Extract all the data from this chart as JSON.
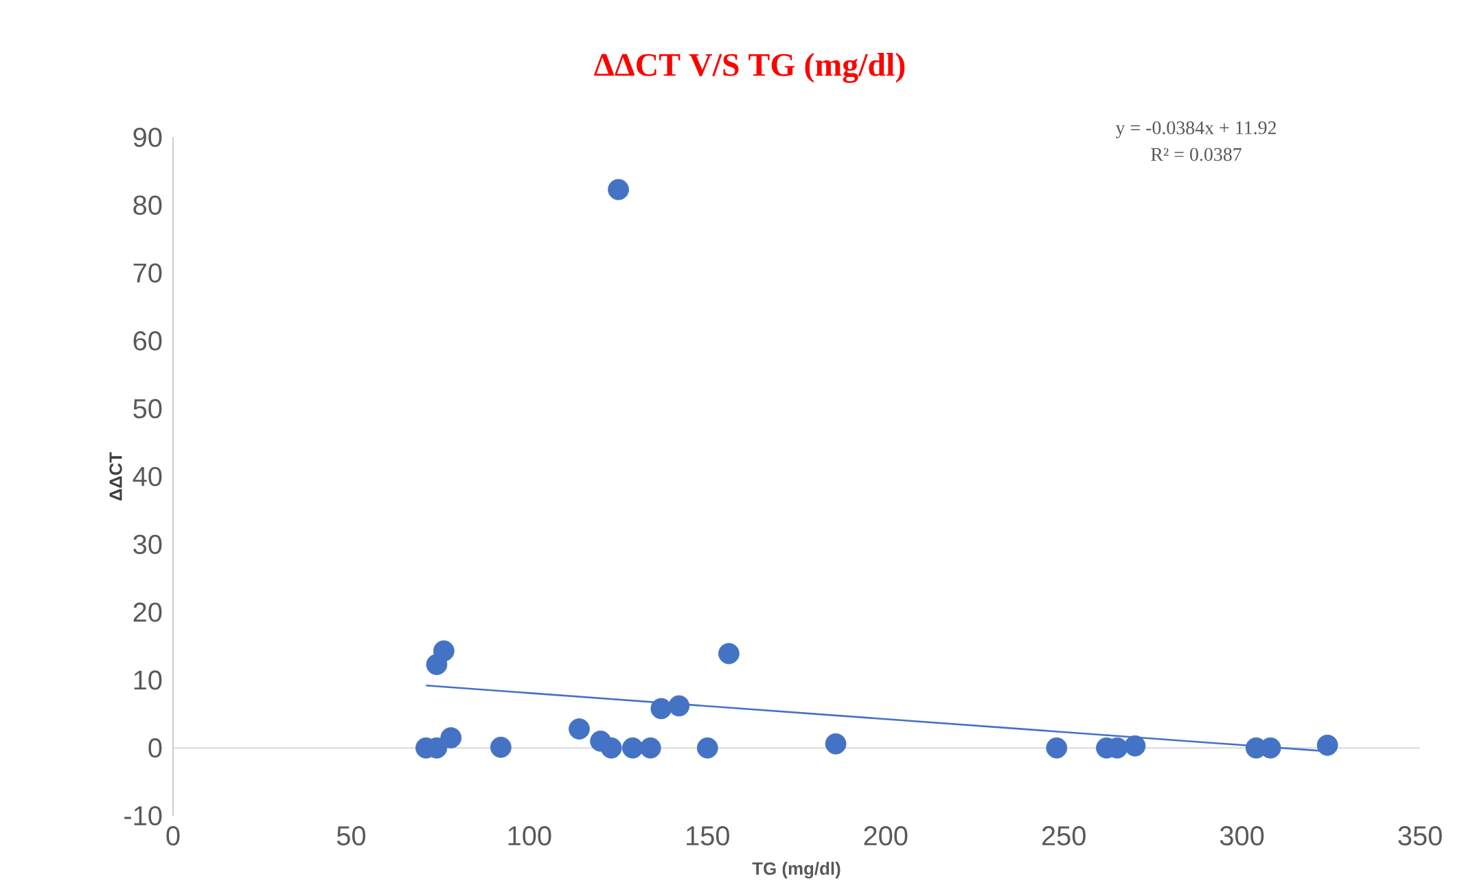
{
  "chart_data": {
    "type": "scatter",
    "title": "ΔΔCT V/S TG (mg/dl)",
    "xlabel": "TG (mg/dl)",
    "ylabel": "ΔΔCT",
    "annotations": [
      "y = -0.0384x + 11.92",
      "R² = 0.0387"
    ],
    "marker": "circle",
    "xlim": [
      0,
      350
    ],
    "ylim": [
      -10,
      90
    ],
    "xticks": [
      0,
      50,
      100,
      150,
      200,
      250,
      300,
      350
    ],
    "yticks": [
      -10,
      0,
      10,
      20,
      30,
      40,
      50,
      60,
      70,
      80,
      90
    ],
    "ref_lines": [
      {
        "axis": "y",
        "value": 0,
        "color": "#d9d9d9"
      }
    ],
    "series": [
      {
        "color": "#4472c4",
        "x": [
          71,
          74,
          74,
          76,
          78,
          92,
          114,
          120,
          123,
          125,
          129,
          134,
          137,
          142,
          150,
          156,
          186,
          248,
          262,
          265,
          270,
          304,
          308,
          324
        ],
        "values": [
          0,
          0,
          12.3,
          14.3,
          1.5,
          0.1,
          2.8,
          1,
          0,
          82.3,
          0,
          0,
          5.8,
          6.2,
          0,
          13.9,
          0.6,
          0,
          0,
          0,
          0.3,
          0,
          0,
          0.4
        ]
      },
      {
        "type": "line",
        "marker": "none",
        "color": "#4472c4",
        "x": [
          71,
          324
        ],
        "values": [
          9.2,
          -0.5
        ]
      }
    ]
  }
}
